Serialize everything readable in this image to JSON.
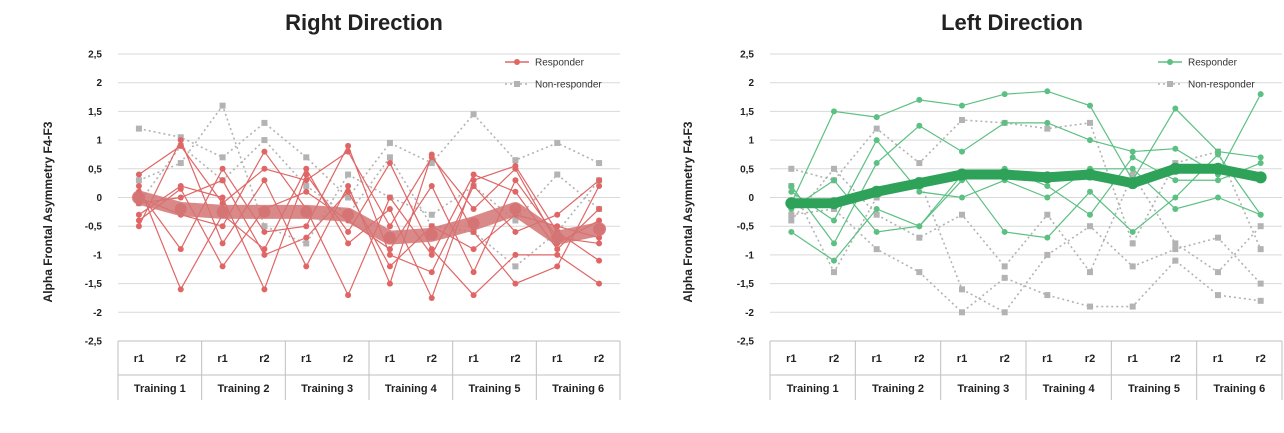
{
  "panels": [
    {
      "title": "Right Direction",
      "ylabel": "Alpha Frontal Asymmetry F4-F3",
      "legend": [
        "Responder",
        "Non-responder"
      ]
    },
    {
      "title": "Left Direction",
      "ylabel": "Alpha Frontal Asymmetry F4-F3",
      "legend": [
        "Responder",
        "Non-responder"
      ]
    }
  ],
  "chart_data": [
    {
      "type": "line",
      "title": "Right Direction",
      "ylabel": "Alpha Frontal Asymmetry F4-F3",
      "ylim": [
        -2.5,
        2.5
      ],
      "yticks": [
        "2,5",
        "2",
        "1,5",
        "1",
        "0,5",
        "0",
        "-0,5",
        "-1",
        "-1,5",
        "-2",
        "-2,5"
      ],
      "grid": true,
      "legend_position": "top-right",
      "colors": {
        "responder": "#e06666",
        "mean": "#d47474",
        "nonresponder": "#b3b3b3"
      },
      "groups": [
        "Training 1",
        "Training 2",
        "Training 3",
        "Training 4",
        "Training 5",
        "Training 6"
      ],
      "runs": [
        "r1",
        "r2"
      ],
      "series": [
        {
          "name": "Responder",
          "role": "mean",
          "values": [
            0.0,
            -0.2,
            -0.25,
            -0.25,
            -0.25,
            -0.3,
            -0.7,
            -0.65,
            -0.45,
            -0.2,
            -0.7,
            -0.55
          ]
        },
        {
          "role": "responder",
          "values": [
            0.4,
            0.9,
            -0.1,
            0.5,
            0.3,
            0.8,
            -0.5,
            0.7,
            -0.2,
            0.5,
            -0.8,
            -0.4
          ]
        },
        {
          "role": "responder",
          "values": [
            0.1,
            -0.9,
            0.5,
            -0.6,
            -0.5,
            0.9,
            -1.0,
            -1.3,
            0.2,
            -0.6,
            -0.3,
            0.3
          ]
        },
        {
          "role": "responder",
          "values": [
            -0.3,
            0.2,
            0.0,
            -1.6,
            0.4,
            -0.6,
            0.6,
            -0.9,
            -1.7,
            -1.0,
            -1.0,
            -1.5
          ]
        },
        {
          "role": "responder",
          "values": [
            -0.5,
            1.0,
            -0.8,
            0.3,
            -1.2,
            0.2,
            -1.5,
            0.75,
            -0.6,
            -1.5,
            -1.2,
            0.2
          ]
        },
        {
          "role": "responder",
          "values": [
            0.2,
            -1.6,
            -0.3,
            -0.9,
            0.5,
            -0.8,
            -0.2,
            -1.75,
            0.3,
            0.55,
            -0.6,
            -1.1
          ]
        },
        {
          "role": "responder",
          "values": [
            -0.1,
            0.0,
            0.3,
            -1.0,
            -0.7,
            0.1,
            -1.2,
            -0.5,
            -0.9,
            -0.3,
            -0.5,
            -0.7
          ]
        },
        {
          "role": "responder",
          "values": [
            0.0,
            -0.3,
            -0.5,
            0.8,
            -0.2,
            -1.7,
            0.0,
            -1.0,
            0.4,
            0.1,
            -0.9,
            -0.2
          ]
        },
        {
          "role": "responder",
          "values": [
            -0.4,
            0.15,
            -1.2,
            -0.2,
            0.1,
            -0.4,
            -0.9,
            0.2,
            -1.3,
            0.3,
            -0.7,
            -0.8
          ]
        }
      ],
      "nonresponder_series": [
        {
          "values": [
            1.2,
            1.05,
            0.7,
            1.3,
            0.7,
            0.0,
            0.95,
            0.6,
            1.45,
            0.65,
            0.95,
            0.6
          ]
        },
        {
          "values": [
            0.3,
            0.6,
            1.6,
            -0.5,
            -0.8,
            0.4,
            0.0,
            -0.3,
            0.2,
            -0.4,
            0.4,
            -0.2
          ]
        },
        {
          "values": [
            -0.1,
            0.9,
            0.3,
            1.0,
            0.2,
            -0.3,
            0.7,
            -0.5,
            -0.6,
            -1.2,
            -0.6,
            0.3
          ]
        }
      ]
    },
    {
      "type": "line",
      "title": "Left Direction",
      "ylabel": "Alpha Frontal Asymmetry F4-F3",
      "ylim": [
        -2.5,
        2.5
      ],
      "yticks": [
        "2,5",
        "2",
        "1,5",
        "1",
        "0,5",
        "0",
        "-0,5",
        "-1",
        "-1,5",
        "-2",
        "-2,5"
      ],
      "grid": true,
      "legend_position": "top-right",
      "colors": {
        "responder": "#5cc083",
        "mean": "#2fa25a",
        "nonresponder": "#b3b3b3"
      },
      "groups": [
        "Training 1",
        "Training 2",
        "Training 3",
        "Training 4",
        "Training 5",
        "Training 6"
      ],
      "runs": [
        "r1",
        "r2"
      ],
      "series": [
        {
          "name": "Responder",
          "role": "mean",
          "values": [
            -0.1,
            -0.1,
            0.1,
            0.25,
            0.4,
            0.4,
            0.35,
            0.4,
            0.25,
            0.5,
            0.5,
            0.35
          ]
        },
        {
          "role": "responder",
          "values": [
            -0.1,
            1.5,
            1.4,
            1.7,
            1.6,
            1.8,
            1.85,
            1.6,
            0.3,
            1.55,
            0.8,
            0.7
          ]
        },
        {
          "role": "responder",
          "values": [
            0.2,
            -0.8,
            0.6,
            1.25,
            0.8,
            1.3,
            1.3,
            1.0,
            0.8,
            0.85,
            0.4,
            1.8
          ]
        },
        {
          "role": "responder",
          "values": [
            -0.6,
            -1.1,
            -0.2,
            -0.5,
            0.4,
            -0.6,
            -0.7,
            0.1,
            -0.6,
            0.0,
            0.75,
            -0.3
          ]
        },
        {
          "role": "responder",
          "values": [
            0.1,
            -0.4,
            1.0,
            0.1,
            0.0,
            0.3,
            0.0,
            0.5,
            0.5,
            -0.2,
            0.0,
            -0.3
          ]
        },
        {
          "role": "responder",
          "values": [
            -0.2,
            0.3,
            -0.6,
            -0.5,
            0.3,
            0.5,
            0.2,
            -0.3,
            0.7,
            0.3,
            0.3,
            0.6
          ]
        }
      ],
      "nonresponder_series": [
        {
          "values": [
            0.5,
            0.3,
            1.2,
            0.6,
            1.35,
            1.3,
            1.2,
            1.3,
            -0.8,
            0.6,
            0.8,
            -0.9
          ]
        },
        {
          "values": [
            -0.3,
            -0.2,
            -0.9,
            -1.3,
            -2.0,
            -1.4,
            -1.7,
            -1.9,
            -1.9,
            -1.1,
            -1.7,
            -1.8
          ]
        },
        {
          "values": [
            0.2,
            -1.3,
            0.0,
            0.3,
            -1.6,
            -2.0,
            -1.0,
            -0.5,
            -1.2,
            -0.9,
            -0.7,
            -1.5
          ]
        },
        {
          "values": [
            -0.4,
            0.5,
            -0.3,
            -0.7,
            -0.3,
            -1.2,
            -0.3,
            -1.3,
            0.4,
            -0.8,
            -1.3,
            -0.5
          ]
        }
      ]
    }
  ]
}
